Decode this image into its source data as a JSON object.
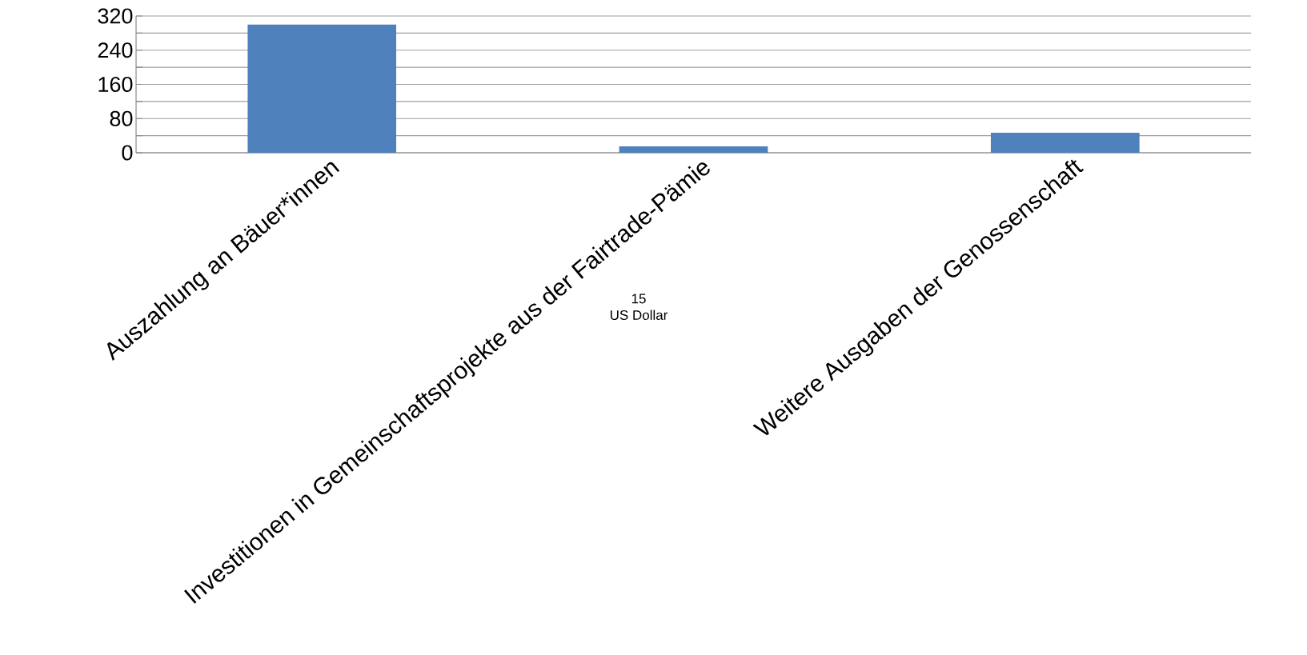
{
  "chart_data": {
    "type": "bar",
    "categories": [
      "Auszahlung an Bäuer*innen",
      "Investitionen in Gemeinschaftsprojekte aus der Fairtrade-Pämie",
      "Weitere Ausgaben der Genossenschaft"
    ],
    "values": [
      300,
      15,
      47
    ],
    "color": "#4f81bd",
    "ylim": [
      0,
      320
    ],
    "yticks": [
      0,
      {
        "value": 40,
        "label": null
      },
      80,
      {
        "value": 120,
        "label": null
      },
      160,
      {
        "value": 200,
        "label": null
      },
      240,
      {
        "value": 280,
        "label": null
      },
      320
    ],
    "grid": "y",
    "annotations": [
      "15",
      "US Dollar"
    ]
  }
}
